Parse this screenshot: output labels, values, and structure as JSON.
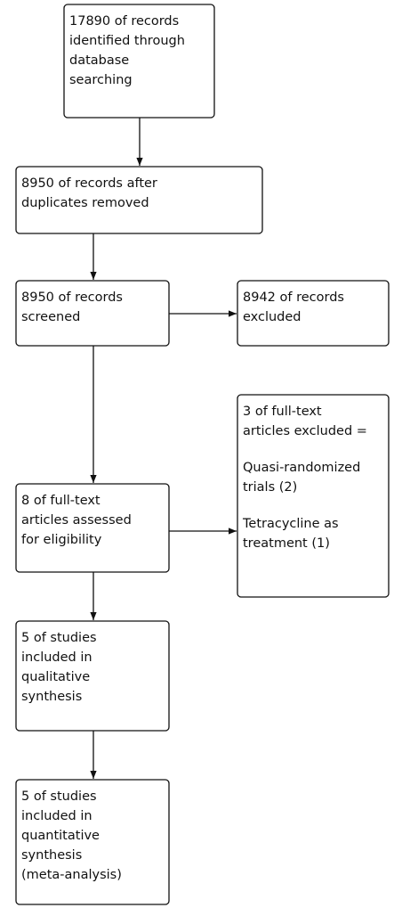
{
  "nodes": [
    {
      "paragraphs": [
        [
          "17890 of records",
          "identified through",
          "database",
          "searching"
        ]
      ]
    },
    {
      "paragraphs": [
        [
          "8950 of records after",
          "duplicates removed"
        ]
      ]
    },
    {
      "paragraphs": [
        [
          "8950 of records",
          "screened"
        ]
      ]
    },
    {
      "paragraphs": [
        [
          "8942 of records",
          "excluded"
        ]
      ]
    },
    {
      "paragraphs": [
        [
          "3 of full-text",
          "articles excluded ="
        ],
        [
          "Quasi-randomized",
          "trials (2)"
        ],
        [
          "Tetracycline as",
          "treatment (1)"
        ]
      ]
    },
    {
      "paragraphs": [
        [
          "8 of full-text",
          "articles assessed",
          "for eligibility"
        ]
      ]
    },
    {
      "paragraphs": [
        [
          "5 of studies",
          "included in",
          "qualitative",
          "synthesis"
        ]
      ]
    },
    {
      "paragraphs": [
        [
          "5 of studies",
          "included in",
          "quantitative",
          "synthesis",
          "(meta-analysis)"
        ]
      ]
    }
  ]
}
